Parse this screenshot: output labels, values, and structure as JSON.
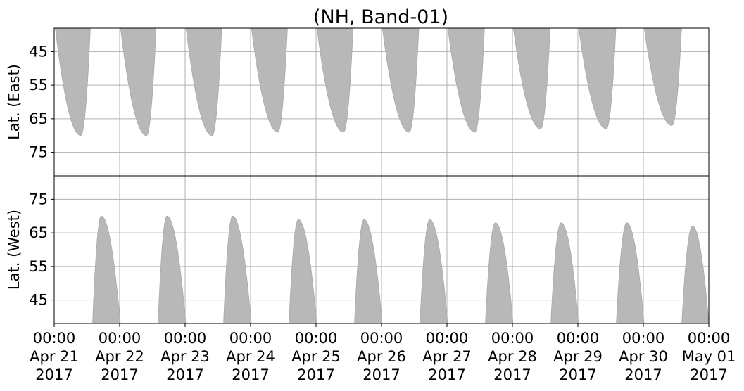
{
  "chart_data": {
    "type": "area",
    "title": "(NH, Band-01)",
    "colors": {
      "fill": "#b8b8b8",
      "grid": "#b0b0b0",
      "axis": "#000000"
    },
    "grid": true,
    "x_range": [
      "2017-04-21T00:00",
      "2017-05-01T00:00"
    ],
    "xticks": [
      {
        "time": "00:00",
        "date": "Apr 21",
        "year": "2017"
      },
      {
        "time": "00:00",
        "date": "Apr 22",
        "year": "2017"
      },
      {
        "time": "00:00",
        "date": "Apr 23",
        "year": "2017"
      },
      {
        "time": "00:00",
        "date": "Apr 24",
        "year": "2017"
      },
      {
        "time": "00:00",
        "date": "Apr 25",
        "year": "2017"
      },
      {
        "time": "00:00",
        "date": "Apr 26",
        "year": "2017"
      },
      {
        "time": "00:00",
        "date": "Apr 27",
        "year": "2017"
      },
      {
        "time": "00:00",
        "date": "Apr 28",
        "year": "2017"
      },
      {
        "time": "00:00",
        "date": "Apr 29",
        "year": "2017"
      },
      {
        "time": "00:00",
        "date": "Apr 30",
        "year": "2017"
      },
      {
        "time": "00:00",
        "date": "May 01",
        "year": "2017"
      }
    ],
    "panels": [
      {
        "ylabel": "Lat. (East)",
        "yticks": [
          "45",
          "55",
          "65",
          "75"
        ],
        "ylim": [
          38,
          82
        ],
        "y_inverted": true,
        "coverage": [
          {
            "start": "2017-04-21T00:25",
            "end": "2017-04-21T13:15",
            "extreme_lat": 70,
            "extreme_time": "2017-04-21T09:45"
          },
          {
            "start": "2017-04-22T00:20",
            "end": "2017-04-22T13:20",
            "extreme_lat": 70,
            "extreme_time": "2017-04-22T09:50"
          },
          {
            "start": "2017-04-23T00:20",
            "end": "2017-04-23T13:25",
            "extreme_lat": 70,
            "extreme_time": "2017-04-23T09:55"
          },
          {
            "start": "2017-04-24T00:20",
            "end": "2017-04-24T13:30",
            "extreme_lat": 69,
            "extreme_time": "2017-04-24T10:00"
          },
          {
            "start": "2017-04-25T00:20",
            "end": "2017-04-25T13:35",
            "extreme_lat": 69,
            "extreme_time": "2017-04-25T10:05"
          },
          {
            "start": "2017-04-26T00:20",
            "end": "2017-04-26T13:40",
            "extreme_lat": 69,
            "extreme_time": "2017-04-26T10:10"
          },
          {
            "start": "2017-04-27T00:20",
            "end": "2017-04-27T13:45",
            "extreme_lat": 69,
            "extreme_time": "2017-04-27T10:15"
          },
          {
            "start": "2017-04-28T00:20",
            "end": "2017-04-28T13:50",
            "extreme_lat": 68,
            "extreme_time": "2017-04-28T10:20"
          },
          {
            "start": "2017-04-29T00:20",
            "end": "2017-04-29T13:55",
            "extreme_lat": 68,
            "extreme_time": "2017-04-29T10:25"
          },
          {
            "start": "2017-04-30T00:20",
            "end": "2017-04-30T14:00",
            "extreme_lat": 67,
            "extreme_time": "2017-04-30T10:30"
          }
        ]
      },
      {
        "ylabel": "Lat. (West)",
        "yticks": [
          "45",
          "55",
          "65",
          "75"
        ],
        "ylim": [
          38,
          82
        ],
        "y_inverted": false,
        "coverage": [
          {
            "start": "2017-04-21T14:05",
            "end": "2017-04-22T00:15",
            "extreme_lat": 70,
            "extreme_time": "2017-04-21T17:15"
          },
          {
            "start": "2017-04-22T14:05",
            "end": "2017-04-23T00:15",
            "extreme_lat": 70,
            "extreme_time": "2017-04-22T17:20"
          },
          {
            "start": "2017-04-23T14:05",
            "end": "2017-04-24T00:15",
            "extreme_lat": 70,
            "extreme_time": "2017-04-23T17:25"
          },
          {
            "start": "2017-04-24T14:05",
            "end": "2017-04-25T00:15",
            "extreme_lat": 69,
            "extreme_time": "2017-04-24T17:30"
          },
          {
            "start": "2017-04-25T14:05",
            "end": "2017-04-26T00:15",
            "extreme_lat": 69,
            "extreme_time": "2017-04-25T17:35"
          },
          {
            "start": "2017-04-26T14:05",
            "end": "2017-04-27T00:15",
            "extreme_lat": 69,
            "extreme_time": "2017-04-26T17:40"
          },
          {
            "start": "2017-04-27T14:05",
            "end": "2017-04-28T00:15",
            "extreme_lat": 68,
            "extreme_time": "2017-04-27T17:45"
          },
          {
            "start": "2017-04-28T14:05",
            "end": "2017-04-29T00:15",
            "extreme_lat": 68,
            "extreme_time": "2017-04-28T17:50"
          },
          {
            "start": "2017-04-29T14:05",
            "end": "2017-04-30T00:15",
            "extreme_lat": 68,
            "extreme_time": "2017-04-29T17:55"
          },
          {
            "start": "2017-04-30T14:05",
            "end": "2017-05-01T00:00",
            "extreme_lat": 67,
            "extreme_time": "2017-04-30T18:00"
          }
        ]
      }
    ]
  }
}
